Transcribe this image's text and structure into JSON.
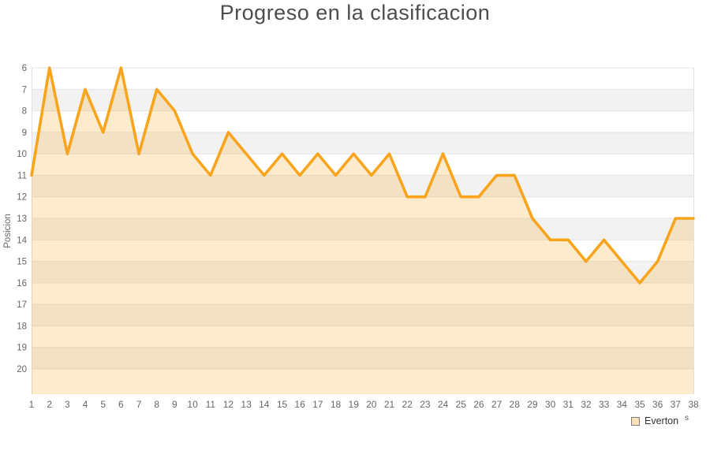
{
  "title": "Progreso en la clasificacion",
  "legend": {
    "label": "Everton"
  },
  "credit_remnant": "s",
  "chart_data": {
    "type": "line",
    "title": "Progreso en la clasificacion",
    "xlabel": "",
    "ylabel": "Posicion",
    "x": [
      1,
      2,
      3,
      4,
      5,
      6,
      7,
      8,
      9,
      10,
      11,
      12,
      13,
      14,
      15,
      16,
      17,
      18,
      19,
      20,
      21,
      22,
      23,
      24,
      25,
      26,
      27,
      28,
      29,
      30,
      31,
      32,
      33,
      34,
      35,
      36,
      37,
      38
    ],
    "series": [
      {
        "name": "Everton",
        "values": [
          11,
          6,
          10,
          7,
          9,
          6,
          10,
          7,
          8,
          10,
          11,
          9,
          10,
          11,
          10,
          11,
          10,
          11,
          10,
          11,
          10,
          12,
          12,
          10,
          12,
          12,
          11,
          11,
          13,
          14,
          14,
          15,
          14,
          15,
          16,
          15,
          13,
          13
        ]
      }
    ],
    "y_axis": {
      "min": 6,
      "max": 20,
      "inverted": true,
      "ticks": [
        6,
        7,
        8,
        9,
        10,
        11,
        12,
        13,
        14,
        15,
        16,
        17,
        18,
        19,
        20
      ]
    },
    "x_axis": {
      "ticks": [
        1,
        2,
        3,
        4,
        5,
        6,
        7,
        8,
        9,
        10,
        11,
        12,
        13,
        14,
        15,
        16,
        17,
        18,
        19,
        20,
        21,
        22,
        23,
        24,
        25,
        26,
        27,
        28,
        29,
        30,
        31,
        32,
        33,
        34,
        35,
        36,
        37,
        38
      ]
    },
    "legend_position": "bottom-right",
    "grid": true,
    "alternating_bands": true,
    "colors": {
      "line": "#F8A41D",
      "area_fill_rgba": "rgba(247,163,30,0.22)",
      "band_gray": "#F2F2F2",
      "grid_line": "#E4E4E4",
      "plot_border": "#E0E0E0",
      "title_text": "#4D4D4D",
      "axis_text": "#666666",
      "legend_text": "#333333",
      "legend_swatch_fill": "#FBE1B9",
      "legend_swatch_border": "#7F7F7F"
    }
  }
}
